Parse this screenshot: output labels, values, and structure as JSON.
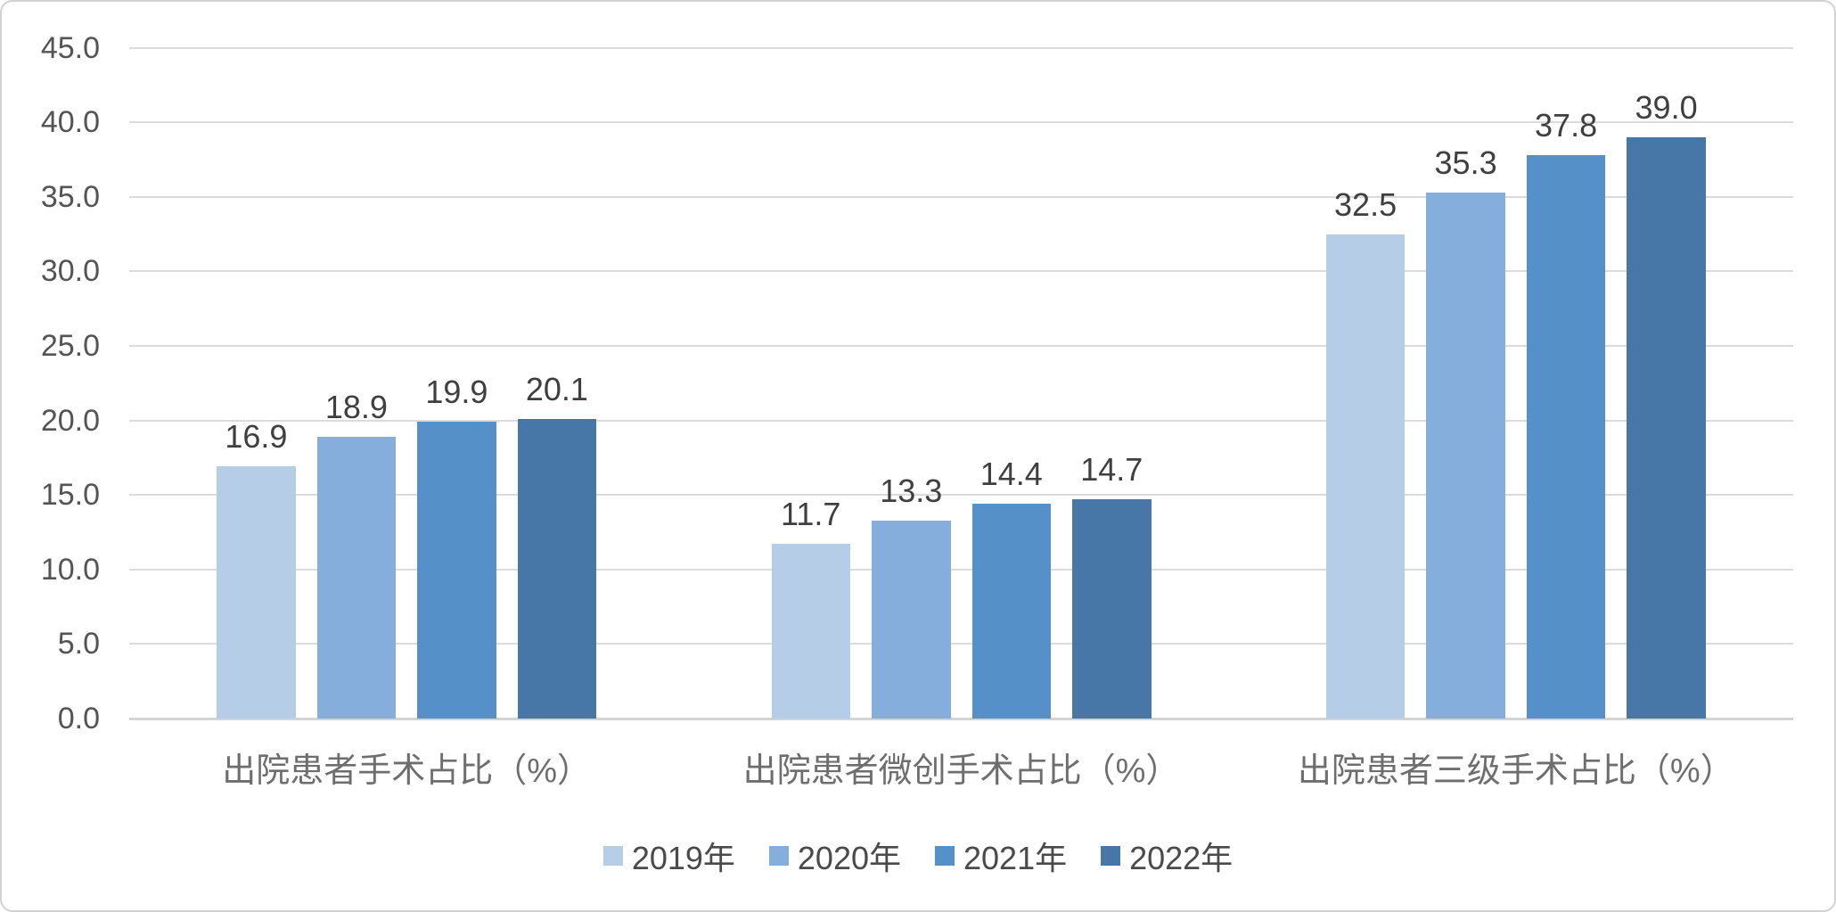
{
  "chart_data": {
    "type": "bar",
    "title": "",
    "categories": [
      "出院患者手术占比（%）",
      "出院患者微创手术占比（%）",
      "出院患者三级手术占比（%）"
    ],
    "series": [
      {
        "name": "2019年",
        "color": "#B6CDE8",
        "values": [
          16.9,
          11.7,
          32.5
        ],
        "labels": [
          "16.9",
          "11.7",
          "32.5"
        ]
      },
      {
        "name": "2020年",
        "color": "#85AEDC",
        "values": [
          18.9,
          13.3,
          35.3
        ],
        "labels": [
          "18.9",
          "13.3",
          "35.3"
        ]
      },
      {
        "name": "2021年",
        "color": "#5690C8",
        "values": [
          19.9,
          14.4,
          37.8
        ],
        "labels": [
          "19.9",
          "14.4",
          "37.8"
        ]
      },
      {
        "name": "2022年",
        "color": "#4677A6",
        "values": [
          20.1,
          14.7,
          39.0
        ],
        "labels": [
          "20.1",
          "14.7",
          "39.0"
        ]
      }
    ],
    "y_axis": {
      "min": 0,
      "max": 45,
      "step": 5,
      "tick_labels": [
        "0.0",
        "5.0",
        "10.0",
        "15.0",
        "20.0",
        "25.0",
        "30.0",
        "35.0",
        "40.0",
        "45.0"
      ]
    },
    "grid": true,
    "legend_position": "bottom",
    "style_colors": {
      "gridline": "#dbdbdb",
      "axis_line": "#d4d4d4",
      "tick_label": "#545454",
      "data_label": "#3f3f3f",
      "category_label": "#6e6e6e",
      "legend_label": "#4a4a4a",
      "background": "#ffffff",
      "frame_border": "#d2d2d2"
    }
  }
}
